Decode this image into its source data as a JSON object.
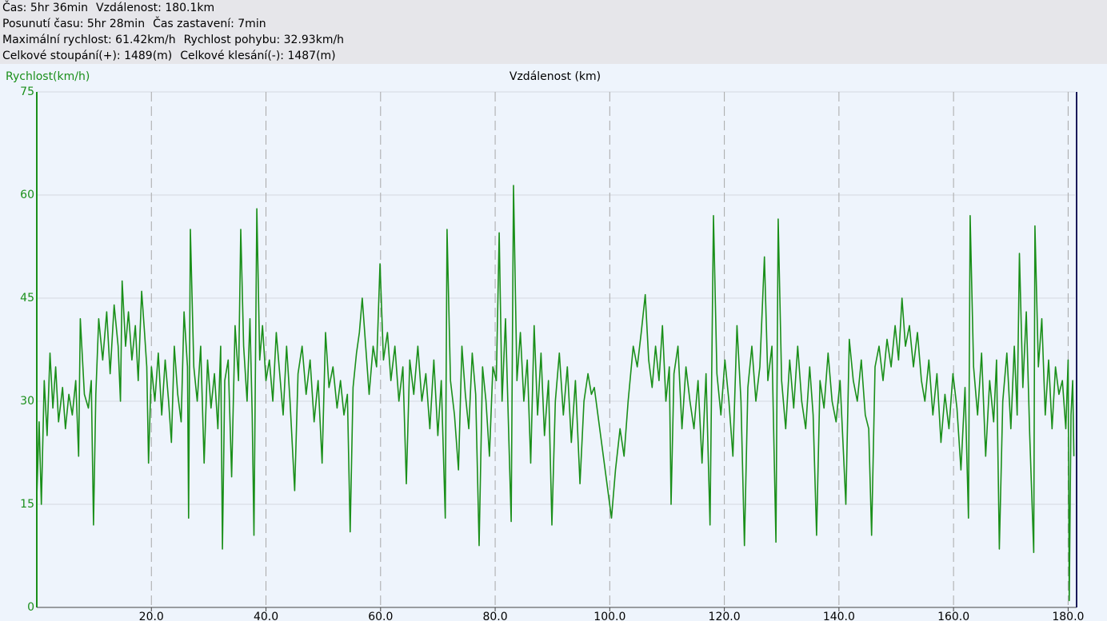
{
  "header": {
    "lines": [
      [
        "Čas: 5hr 36min",
        "Vzdálenost: 180.1km"
      ],
      [
        "Posunutí času: 5hr 28min",
        "Čas zastavení: 7min"
      ],
      [
        "Maximální rychlost: 61.42km/h",
        "Rychlost pohybu: 32.93km/h"
      ],
      [
        "Celkové stoupání(+): 1489(m)",
        "Celkové klesání(-): 1487(m)"
      ]
    ]
  },
  "chart_data": {
    "type": "line",
    "x_label": "Vzdálenost (km)",
    "y_label": "Rychlost(km/h)",
    "color": "#1a8f1a",
    "grid": true,
    "xlim": [
      0,
      181.2
    ],
    "ylim": [
      0,
      75
    ],
    "xticks": [
      {
        "value": 20,
        "label": "20.0"
      },
      {
        "value": 40,
        "label": "40.0"
      },
      {
        "value": 60,
        "label": "60.0"
      },
      {
        "value": 80,
        "label": "80.0"
      },
      {
        "value": 100,
        "label": "100.0"
      },
      {
        "value": 120,
        "label": "120.0"
      },
      {
        "value": 140,
        "label": "140.0"
      },
      {
        "value": 160,
        "label": "160.0"
      },
      {
        "value": 180,
        "label": "180.0"
      }
    ],
    "yticks": [
      0,
      15,
      30,
      45,
      60,
      75
    ],
    "x": [
      0,
      0.4,
      0.8,
      1.3,
      1.8,
      2.3,
      2.8,
      3.3,
      3.8,
      4.5,
      5,
      5.6,
      6.2,
      6.8,
      7.3,
      7.6,
      8.3,
      9,
      9.5,
      9.9,
      10.3,
      10.8,
      11.5,
      12.2,
      12.8,
      13.5,
      14.2,
      14.6,
      14.9,
      15.5,
      16,
      16.6,
      17.2,
      17.7,
      18.3,
      18.8,
      19.2,
      19.5,
      20,
      20.6,
      21.2,
      21.8,
      22.4,
      23,
      23.5,
      24,
      24.6,
      25.2,
      25.7,
      26.3,
      26.5,
      26.8,
      27.4,
      28,
      28.6,
      29.2,
      29.8,
      30.4,
      31,
      31.6,
      32.1,
      32.4,
      32.8,
      33.4,
      34,
      34.6,
      35.2,
      35.6,
      36.1,
      36.7,
      37.2,
      37.6,
      37.9,
      38.4,
      38.9,
      39.4,
      40,
      40.6,
      41.2,
      41.8,
      42.4,
      43,
      43.6,
      44.2,
      45,
      45.6,
      46.3,
      47,
      47.7,
      48.4,
      49.1,
      49.8,
      50.4,
      51,
      51.7,
      52.4,
      53,
      53.6,
      54.2,
      54.7,
      55.2,
      55.8,
      56.3,
      56.8,
      57.4,
      58,
      58.7,
      59.3,
      59.9,
      60.5,
      61.2,
      61.8,
      62.5,
      63.2,
      63.9,
      64.5,
      65.1,
      65.8,
      66.5,
      67.2,
      67.9,
      68.6,
      69.3,
      70,
      70.6,
      71.3,
      71.6,
      72.2,
      72.9,
      73.6,
      74.2,
      74.8,
      75.4,
      76,
      76.6,
      77.2,
      77.8,
      78.4,
      79,
      79.6,
      80.2,
      80.7,
      81.2,
      81.8,
      82.4,
      82.8,
      83.2,
      83.8,
      84.4,
      85,
      85.6,
      86.2,
      86.8,
      87.4,
      88,
      88.6,
      89.3,
      89.9,
      90.5,
      91.2,
      91.9,
      92.6,
      93.3,
      94,
      94.8,
      95.5,
      96.2,
      96.8,
      97.3,
      100.3,
      101,
      101.8,
      102.5,
      103.2,
      104.1,
      104.8,
      105.5,
      106.2,
      106.8,
      107.4,
      108,
      108.6,
      109.2,
      109.8,
      110.4,
      110.7,
      111.2,
      111.9,
      112.6,
      113.3,
      114,
      114.7,
      115.4,
      116.1,
      116.8,
      117.5,
      118.1,
      118.7,
      119.4,
      120.1,
      120.8,
      121.5,
      122.2,
      122.9,
      123.5,
      124.1,
      124.8,
      125.5,
      126.2,
      127,
      127.6,
      128.3,
      129,
      129.4,
      130,
      130.7,
      131.4,
      132.1,
      132.8,
      133.5,
      134.2,
      134.9,
      135.5,
      136.1,
      136.7,
      137.4,
      138.1,
      138.8,
      139.5,
      140.2,
      140.7,
      141.2,
      141.8,
      142.5,
      143.2,
      143.9,
      144.6,
      145.2,
      145.7,
      146.3,
      147,
      147.7,
      148.4,
      149.1,
      149.8,
      150.4,
      151,
      151.6,
      152.3,
      153,
      153.7,
      154.4,
      155,
      155.7,
      156.4,
      157.1,
      157.8,
      158.5,
      159.2,
      159.9,
      160.6,
      161.3,
      162,
      162.6,
      162.9,
      163.5,
      164.2,
      164.9,
      165.6,
      166.3,
      167,
      167.5,
      168,
      168.6,
      169.3,
      170,
      170.6,
      171.1,
      171.5,
      172.1,
      172.7,
      173.3,
      174,
      174.2,
      174.8,
      175.4,
      176,
      176.6,
      177.2,
      177.8,
      178.4,
      179,
      179.6,
      180,
      180.2,
      180.5,
      180.8,
      181
    ],
    "values": [
      16,
      27,
      15,
      33,
      25,
      37,
      29,
      35,
      27,
      32,
      26,
      31,
      28,
      33,
      22,
      42,
      31,
      29,
      33,
      12,
      31,
      42,
      36,
      43,
      34,
      44,
      38,
      30,
      47.5,
      38,
      43,
      36,
      41,
      33,
      46,
      40,
      35,
      21,
      35,
      30,
      37,
      28,
      36,
      30,
      24,
      38,
      31,
      27,
      43,
      35,
      13,
      55,
      35,
      30,
      38,
      21,
      36,
      29,
      34,
      26,
      38,
      8.5,
      33,
      36,
      19,
      41,
      33,
      55,
      38,
      30,
      42,
      28,
      10.5,
      58,
      36,
      41,
      33,
      36,
      30,
      40,
      34,
      28,
      38,
      30,
      17,
      34,
      38,
      31,
      36,
      27,
      33,
      21,
      40,
      32,
      35,
      29,
      33,
      28,
      31,
      11,
      32,
      37,
      40,
      45,
      38,
      31,
      38,
      35,
      50,
      36,
      40,
      33,
      38,
      30,
      35,
      18,
      36,
      31,
      38,
      30,
      34,
      26,
      36,
      25,
      33,
      13,
      55,
      33,
      28,
      20,
      38,
      31,
      26,
      37,
      31,
      9,
      35,
      30,
      22,
      35,
      33,
      54.5,
      30,
      42,
      24,
      12.5,
      61.4,
      33,
      40,
      30,
      36,
      21,
      41,
      28,
      37,
      25,
      33,
      12,
      30,
      37,
      28,
      35,
      24,
      33,
      18,
      30,
      34,
      31,
      32,
      13,
      20,
      26,
      22,
      30,
      38,
      35,
      40,
      45.5,
      36,
      32,
      38,
      33,
      41,
      30,
      35,
      15,
      34,
      38,
      26,
      35,
      30,
      26,
      33,
      21,
      34,
      12,
      57,
      34,
      28,
      36,
      30,
      22,
      41,
      30,
      9,
      32,
      38,
      30,
      35,
      51,
      33,
      38,
      9.5,
      56.5,
      33,
      26,
      36,
      29,
      38,
      30,
      26,
      35,
      28,
      10.5,
      33,
      29,
      37,
      30,
      27,
      33,
      24,
      15,
      39,
      33,
      30,
      36,
      28,
      26,
      10.5,
      35,
      38,
      33,
      39,
      35,
      41,
      36,
      45,
      38,
      41,
      35,
      40,
      33,
      30,
      36,
      28,
      34,
      24,
      31,
      26,
      34,
      29,
      20,
      32,
      13,
      57,
      35,
      28,
      37,
      22,
      33,
      27,
      36,
      8.5,
      30,
      37,
      26,
      38,
      28,
      51.5,
      32,
      43,
      25,
      8,
      55.5,
      35,
      42,
      28,
      36,
      26,
      35,
      31,
      33,
      26,
      36,
      1,
      28,
      33,
      22
    ]
  }
}
